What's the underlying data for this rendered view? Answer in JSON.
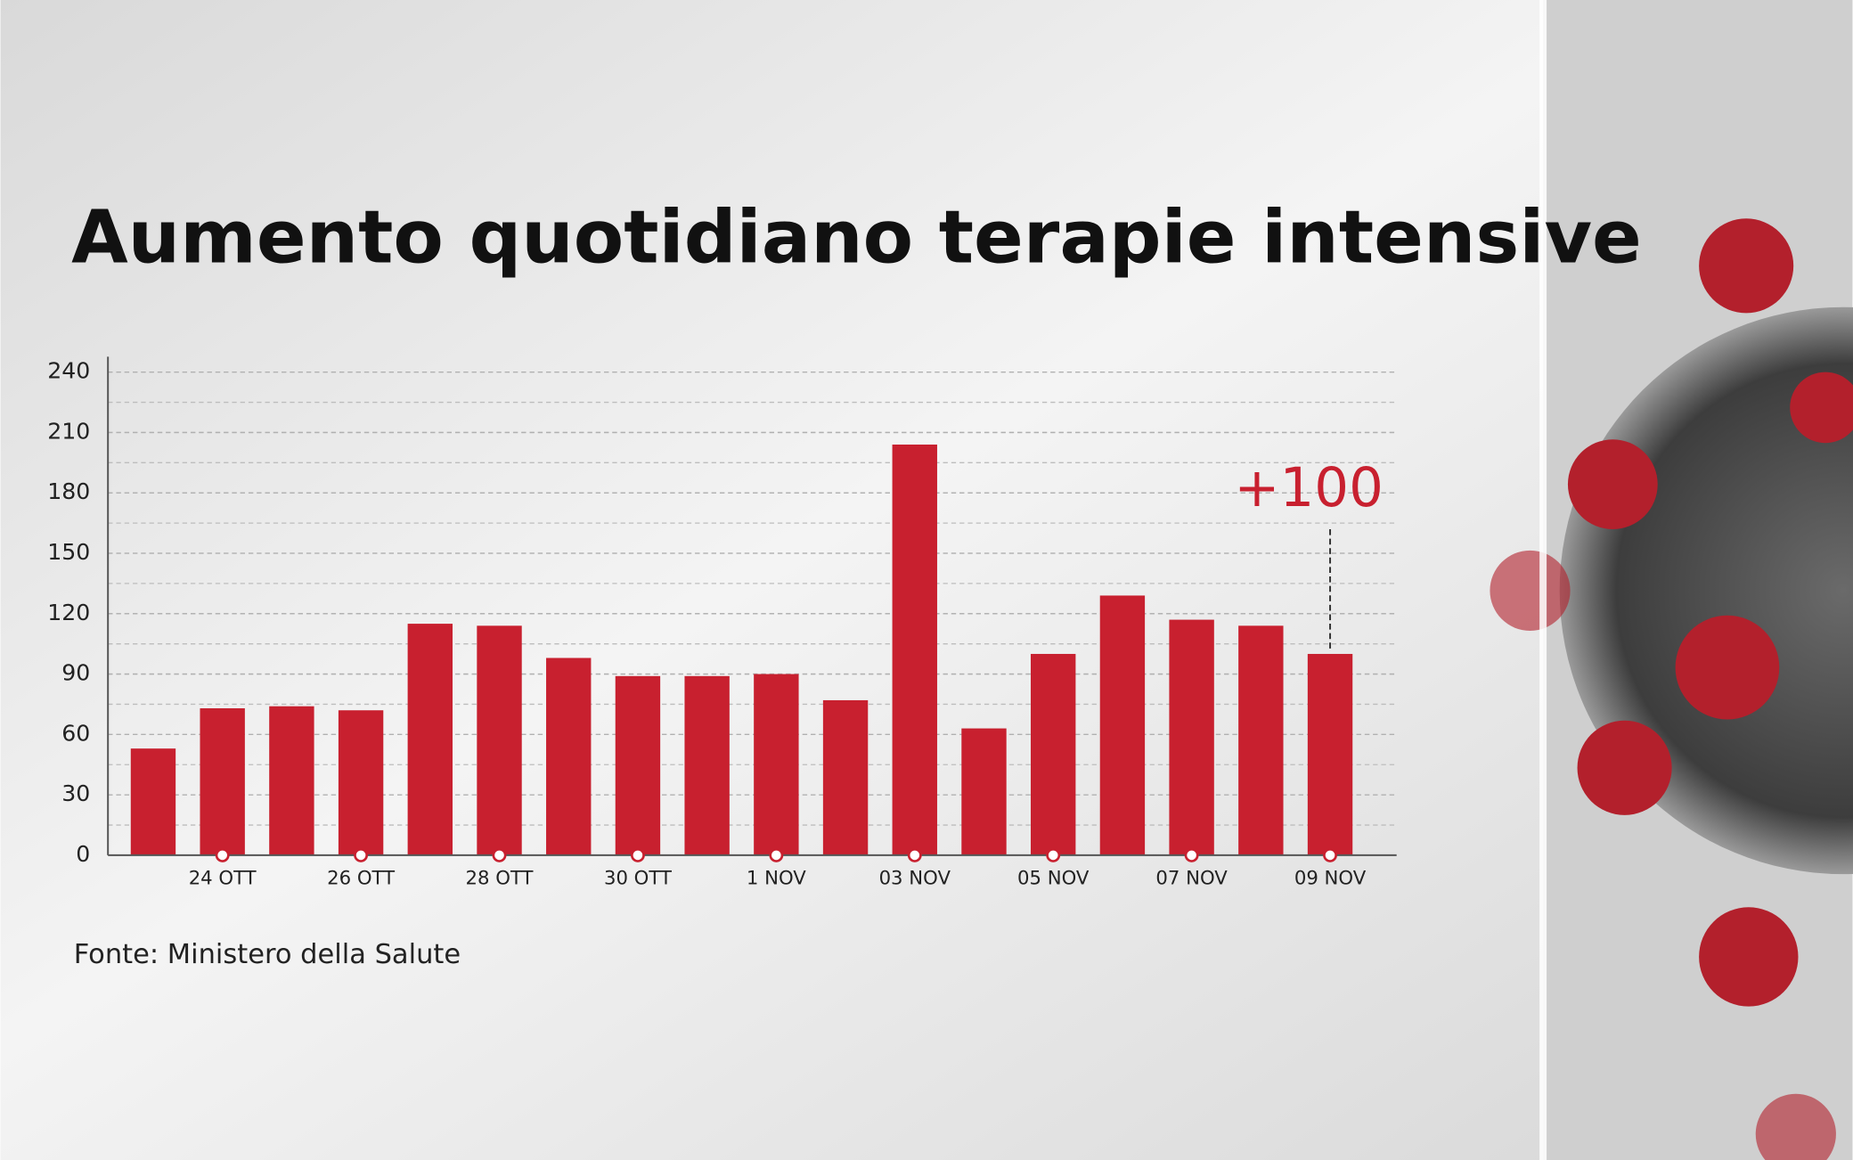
{
  "chart_data": {
    "type": "bar",
    "title": "Aumento quotidiano terapie intensive",
    "source": "Fonte: Ministero della Salute",
    "categories": [
      null,
      "24 OTT",
      null,
      "26 OTT",
      null,
      "28 OTT",
      null,
      "30 OTT",
      null,
      "1 NOV",
      null,
      "03 NOV",
      null,
      "05 NOV",
      null,
      "07 NOV",
      null,
      "09 NOV"
    ],
    "values": [
      53,
      73,
      74,
      72,
      115,
      114,
      98,
      89,
      89,
      90,
      77,
      204,
      63,
      100,
      129,
      117,
      114,
      100
    ],
    "value_labels": [
      null,
      null,
      null,
      null,
      null,
      null,
      null,
      null,
      null,
      null,
      null,
      null,
      null,
      null,
      null,
      null,
      null,
      "+100"
    ],
    "color": "#c8202f",
    "ylim": [
      0,
      240
    ],
    "yticks": [
      0,
      30,
      60,
      90,
      120,
      150,
      180,
      210,
      240
    ],
    "grid": true,
    "grid_step": 15
  }
}
